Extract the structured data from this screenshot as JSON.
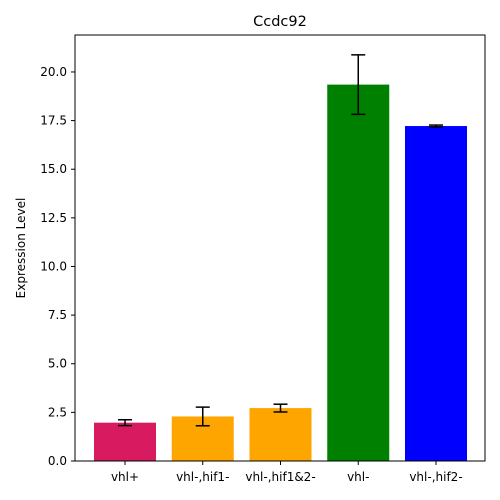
{
  "chart_data": {
    "type": "bar",
    "title": "Ccdc92",
    "xlabel": "",
    "ylabel": "Expression Level",
    "categories": [
      "vhl+",
      "vhl-,hif1-",
      "vhl-,hif1&2-",
      "vhl-",
      "vhl-,hif2-"
    ],
    "values": [
      1.97,
      2.29,
      2.72,
      19.35,
      17.22
    ],
    "errors": [
      0.15,
      0.48,
      0.2,
      1.53,
      0.05
    ],
    "colors": [
      "#d81b60",
      "#ffa500",
      "#ffa500",
      "#008000",
      "#0000ff"
    ],
    "ylim": [
      0,
      21.9
    ],
    "yticks": [
      "0.0",
      "2.5",
      "5.0",
      "7.5",
      "10.0",
      "12.5",
      "15.0",
      "17.5",
      "20.0"
    ],
    "grid": false,
    "error_bars": true
  }
}
